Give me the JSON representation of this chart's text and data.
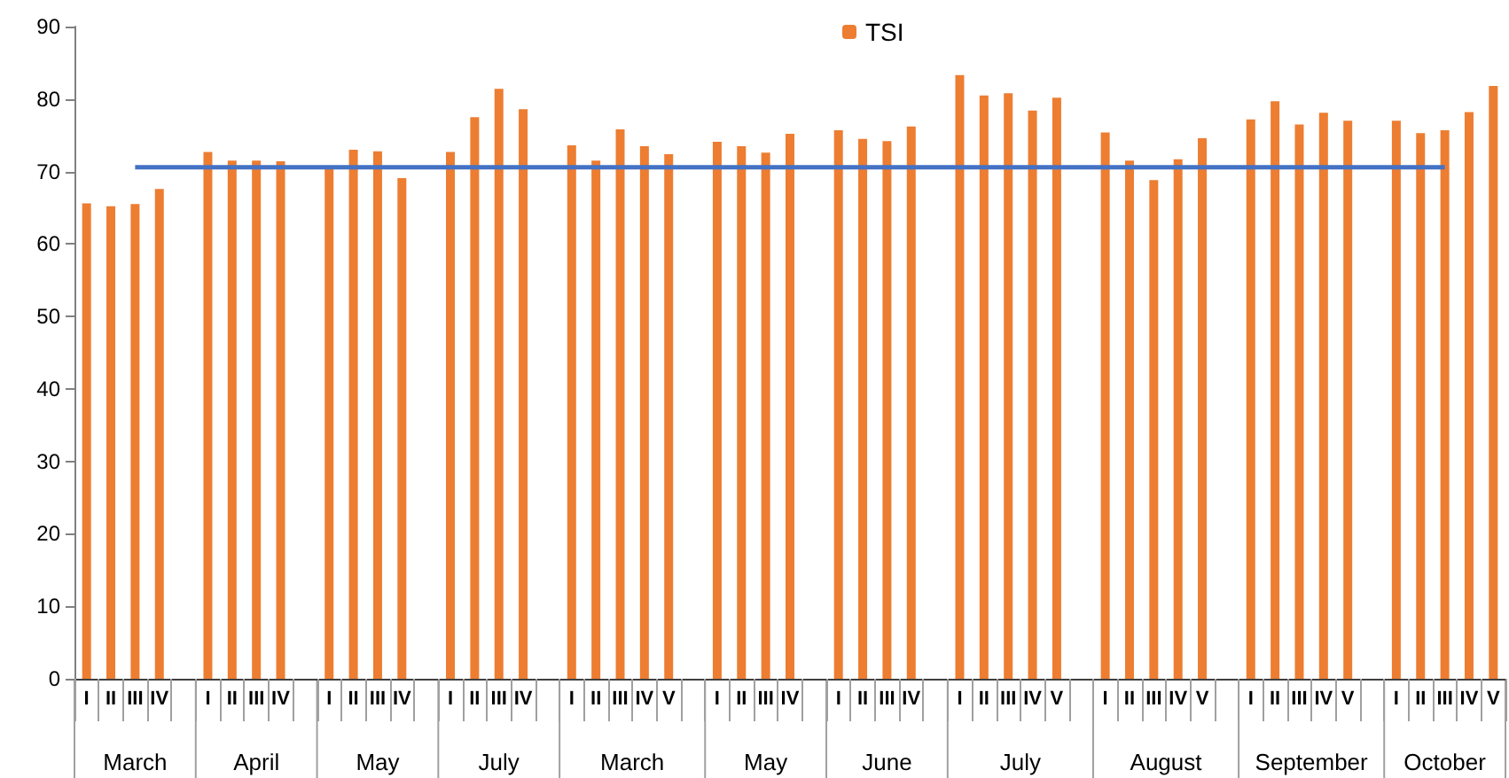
{
  "chart_data": {
    "type": "bar",
    "categories": [
      "I",
      "II",
      "III",
      "IV",
      null,
      "I",
      "II",
      "III",
      "IV",
      null,
      "I",
      "II",
      "III",
      "IV",
      null,
      "I",
      "II",
      "III",
      "IV",
      null,
      "I",
      "II",
      "III",
      "IV",
      "V",
      null,
      "I",
      "II",
      "III",
      "IV",
      null,
      "I",
      "II",
      "III",
      "IV",
      null,
      "I",
      "II",
      "III",
      "IV",
      "V",
      null,
      "I",
      "II",
      "III",
      "IV",
      "V",
      null,
      "I",
      "II",
      "III",
      "IV",
      "V",
      null,
      "I",
      "II",
      "III",
      "IV",
      "V"
    ],
    "annotations": [
      "March",
      "April",
      "May",
      "July",
      "March",
      "May",
      "June",
      "July",
      "August",
      "September",
      "October"
    ],
    "series": [
      {
        "name": "TSI",
        "color": "#ed7d31",
        "values": [
          65.6,
          65.2,
          65.5,
          67.6,
          null,
          72.7,
          71.5,
          71.5,
          71.4,
          null,
          70.4,
          73.0,
          72.8,
          69.1,
          null,
          72.7,
          77.5,
          81.4,
          78.6,
          null,
          73.6,
          71.5,
          75.8,
          73.5,
          72.4,
          null,
          74.1,
          73.5,
          72.6,
          75.2,
          null,
          75.7,
          74.5,
          74.2,
          76.2,
          null,
          83.3,
          80.5,
          80.8,
          78.4,
          80.2,
          null,
          75.4,
          71.5,
          68.8,
          71.7,
          74.6,
          null,
          77.2,
          79.7,
          76.5,
          78.1,
          77.0,
          null,
          77.0,
          75.3,
          75.7,
          78.2,
          81.8
        ]
      },
      {
        "type": "line",
        "color": "#4472c4",
        "values": [
          null,
          null,
          70.6,
          70.6,
          70.6,
          70.6,
          70.6,
          70.6,
          70.6,
          70.6,
          70.6,
          70.6,
          70.6,
          70.6,
          70.6,
          70.6,
          70.6,
          70.6,
          70.6,
          70.6,
          70.6,
          70.6,
          70.6,
          70.6,
          70.6,
          70.6,
          70.6,
          70.6,
          70.6,
          70.6,
          70.6,
          70.6,
          70.6,
          70.6,
          70.6,
          70.6,
          70.6,
          70.6,
          70.6,
          70.6,
          70.6,
          70.6,
          70.6,
          70.6,
          70.6,
          70.6,
          70.6,
          70.6,
          70.6,
          70.6,
          70.6,
          70.6,
          70.6,
          70.6,
          70.6,
          70.6,
          70.6,
          null,
          null
        ]
      }
    ],
    "ylim": [
      0,
      90
    ],
    "yticks": [
      0,
      10,
      20,
      30,
      40,
      50,
      60,
      70,
      80,
      90
    ],
    "grid": false,
    "legend": "top",
    "marker": "none",
    "line_style": "solid"
  }
}
